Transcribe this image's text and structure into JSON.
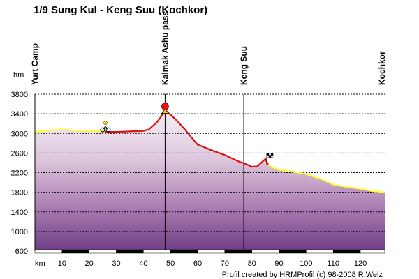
{
  "chart_data": {
    "type": "area",
    "title": "1/9 Sung Kul - Keng Suu (Kochkor)",
    "ylabel": "hm",
    "xlabel": "km",
    "credit": "Profil created by HRMProfil (c) 98-2008 R.Welz",
    "xlim": [
      0,
      129
    ],
    "ylim": [
      600,
      3800
    ],
    "yticks": [
      600,
      1000,
      1400,
      1800,
      2200,
      2600,
      3000,
      3400,
      3800
    ],
    "xticks": [
      10,
      20,
      30,
      40,
      50,
      60,
      70,
      80,
      90,
      100,
      110,
      120
    ],
    "grid": true,
    "waypoints": [
      {
        "km": 0,
        "label": "Yurt Camp"
      },
      {
        "km": 48,
        "label": "Kalmak Ashu pass"
      },
      {
        "km": 77,
        "label": "Keng Suu"
      },
      {
        "km": 128,
        "label": "Kochkor"
      }
    ],
    "markers": [
      {
        "km": 26,
        "elev": 3130,
        "icon": "cyclist-icon"
      },
      {
        "km": 48,
        "elev": 3550,
        "icon": "summit-icon"
      },
      {
        "km": 85.5,
        "elev": 2480,
        "icon": "checkered-flag-icon"
      }
    ],
    "series": [
      {
        "color": "#ffff33",
        "points": [
          [
            0,
            3030
          ],
          [
            5,
            3060
          ],
          [
            10,
            3080
          ],
          [
            15,
            3060
          ],
          [
            20,
            3050
          ],
          [
            25,
            3050
          ],
          [
            26,
            3030
          ]
        ]
      },
      {
        "color": "#dd1111",
        "points": [
          [
            26,
            3030
          ],
          [
            30,
            3030
          ],
          [
            35,
            3040
          ],
          [
            40,
            3050
          ],
          [
            42,
            3080
          ],
          [
            45,
            3230
          ],
          [
            47,
            3380
          ],
          [
            48.5,
            3450
          ],
          [
            50,
            3380
          ],
          [
            52,
            3280
          ],
          [
            55,
            3100
          ],
          [
            58,
            2900
          ],
          [
            60,
            2770
          ],
          [
            65,
            2660
          ],
          [
            70,
            2560
          ],
          [
            75,
            2430
          ],
          [
            78,
            2370
          ],
          [
            80,
            2320
          ],
          [
            82,
            2330
          ],
          [
            84,
            2430
          ],
          [
            85,
            2480
          ],
          [
            86,
            2360
          ]
        ]
      },
      {
        "color": "#ffff33",
        "points": [
          [
            86,
            2360
          ],
          [
            88,
            2300
          ],
          [
            90,
            2260
          ],
          [
            95,
            2220
          ],
          [
            100,
            2170
          ],
          [
            105,
            2080
          ],
          [
            110,
            1960
          ],
          [
            115,
            1910
          ],
          [
            120,
            1870
          ],
          [
            125,
            1820
          ],
          [
            129,
            1800
          ]
        ]
      }
    ]
  }
}
